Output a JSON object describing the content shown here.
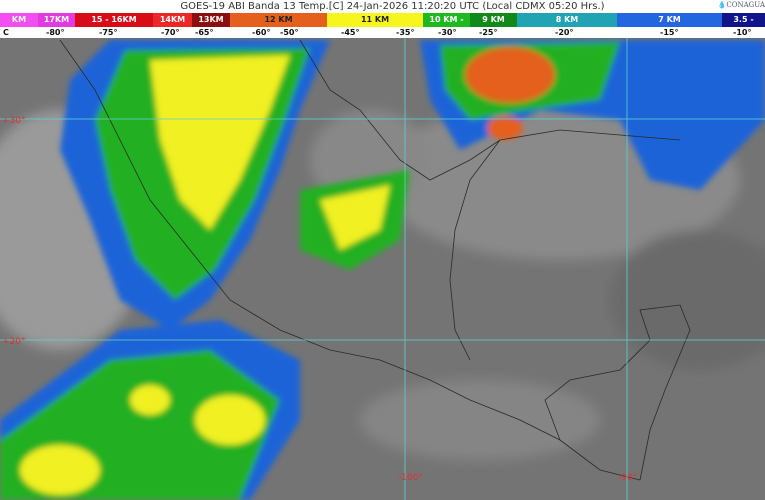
{
  "title": "GOES-19 ABI Banda 13 Temp.[C] 24-Jan-2026 11:20:20 UTC (Local CDMX  05:20 Hrs.)",
  "logo": "CONAGUA",
  "scale": [
    {
      "label": "KM",
      "color": "#f24ef2"
    },
    {
      "label": "17KM",
      "color": "#e23ce0"
    },
    {
      "label": "15 - 16KM",
      "color": "#d80c18"
    },
    {
      "label": "14KM",
      "color": "#ea2828"
    },
    {
      "label": "13KM",
      "color": "#8c0e10"
    },
    {
      "label": "12 KM",
      "color": "#e4601c"
    },
    {
      "label": "11 KM",
      "color": "#f6f61e"
    },
    {
      "label": "10 KM -",
      "color": "#20b820"
    },
    {
      "label": "9 KM",
      "color": "#128a1a"
    },
    {
      "label": "8 KM",
      "color": "#20a4b4"
    },
    {
      "label": "7 KM",
      "color": "#2466e0"
    },
    {
      "label": "3.5 -",
      "color": "#12148a"
    }
  ],
  "temps": [
    "C",
    "-80°",
    "-75°",
    "-70°",
    "-65°",
    "-60°",
    "-50°",
    "-45°",
    "-35°",
    "-30°",
    "-25°",
    "-20°",
    "-15°",
    "-10°"
  ],
  "grid": {
    "lat": [
      "+30°",
      "+20°"
    ],
    "lon": [
      "-100°",
      "-90°"
    ],
    "color": "#5fd0d0"
  }
}
